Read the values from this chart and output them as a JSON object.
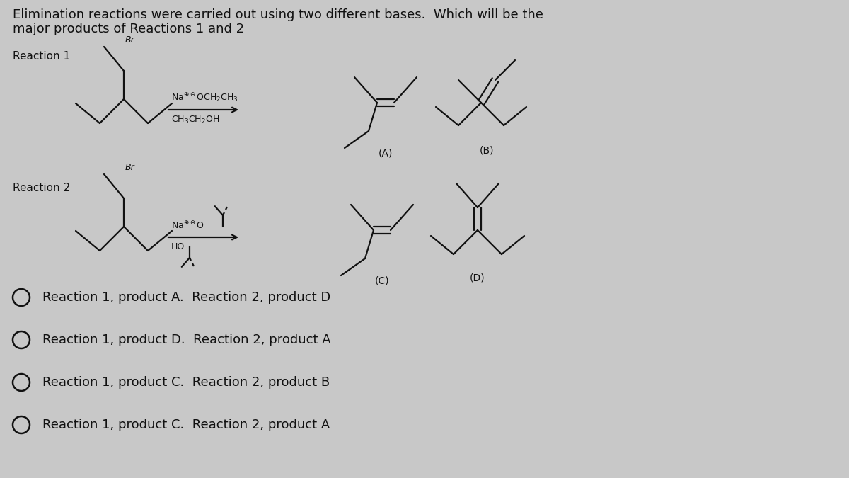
{
  "title_line1": "Elimination reactions were carried out using two different bases.  Which will be the",
  "title_line2": "major products of Reactions 1 and 2",
  "reaction1_label": "Reaction 1",
  "reaction2_label": "Reaction 2",
  "label_A": "(A)",
  "label_B": "(B)",
  "label_C": "(C)",
  "label_D": "(D)",
  "choices": [
    "Reaction 1, product A.  Reaction 2, product D",
    "Reaction 1, product D.  Reaction 2, product A",
    "Reaction 1, product C.  Reaction 2, product B",
    "Reaction 1, product C.  Reaction 2, product A"
  ],
  "bg_color": "#c8c8c8",
  "text_color": "#111111",
  "line_color": "#111111",
  "font_size_title": 12.5,
  "font_size_label": 11,
  "font_size_choice": 13
}
